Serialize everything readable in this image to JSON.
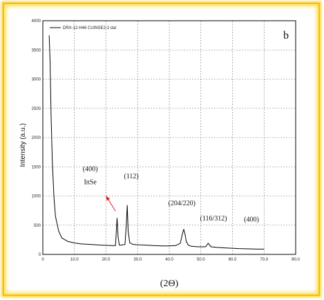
{
  "chart_data": {
    "type": "line",
    "panel_label": "b",
    "xlabel": "(2Θ)",
    "ylabel": "Intensity (a.u.)",
    "xlim": [
      0,
      80
    ],
    "ylim": [
      0,
      4000
    ],
    "x_ticks": [
      "0",
      "10.0",
      "20.0",
      "30.0",
      "40.0",
      "50.0",
      "60.0",
      "70.0",
      "80.0"
    ],
    "y_ticks": [
      "0",
      "500",
      "1000",
      "1500",
      "2000",
      "2500",
      "3000",
      "3500",
      "4000"
    ],
    "grid": true,
    "legend_position": "top-left",
    "series": [
      {
        "name": "DRX-12-H46 CUINSE2-2 dal",
        "color": "#000000",
        "x": [
          2.0,
          2.3,
          2.6,
          3.0,
          3.5,
          4.0,
          5.0,
          6.0,
          8.0,
          10.0,
          12.0,
          15.0,
          18.0,
          20.0,
          22.0,
          23.0,
          23.3,
          23.5,
          23.8,
          24.2,
          25.0,
          26.0,
          26.4,
          26.7,
          27.0,
          27.5,
          28.5,
          30.0,
          32.0,
          35.0,
          38.0,
          40.0,
          42.0,
          43.5,
          44.2,
          44.6,
          45.0,
          45.4,
          46.0,
          47.0,
          49.0,
          51.5,
          52.3,
          53.2,
          55.0,
          58.0,
          60.0,
          62.0,
          65.0,
          68.0,
          70.0
        ],
        "y": [
          3750,
          3300,
          2400,
          1600,
          1000,
          650,
          400,
          280,
          220,
          195,
          180,
          170,
          160,
          155,
          150,
          150,
          450,
          620,
          300,
          160,
          160,
          170,
          500,
          840,
          400,
          200,
          170,
          165,
          160,
          150,
          145,
          145,
          150,
          190,
          360,
          430,
          340,
          220,
          160,
          140,
          130,
          130,
          190,
          130,
          120,
          110,
          105,
          100,
          95,
          90,
          90
        ]
      }
    ],
    "annotations": [
      {
        "text": "(400)",
        "x": 15.0,
        "y": 1425
      },
      {
        "text": "InSe",
        "x": 15.0,
        "y": 1200
      },
      {
        "text": "(112)",
        "x": 28.0,
        "y": 1300
      },
      {
        "text": "(204/220)",
        "x": 44.0,
        "y": 840
      },
      {
        "text": "(116/312)",
        "x": 54.0,
        "y": 580
      },
      {
        "text": "(400)",
        "x": 66.0,
        "y": 560
      }
    ],
    "arrow": {
      "from": [
        23.0,
        740
      ],
      "to": [
        20.0,
        1000
      ],
      "color": "#e02020"
    }
  }
}
